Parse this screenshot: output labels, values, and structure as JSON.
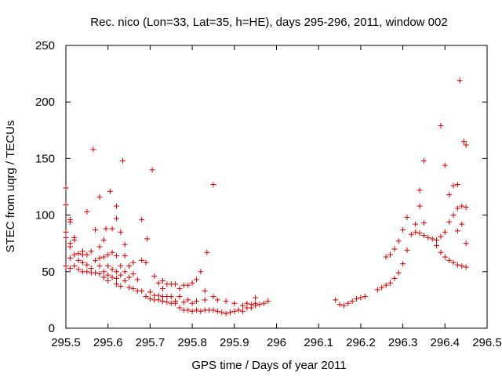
{
  "chart_data": {
    "type": "scatter",
    "title": "Rec. nico (Lon=33, Lat=35, h=HE), days 295-296, 2011, window 002",
    "xlabel": "GPS time / Days of year 2011",
    "ylabel": "STEC from uqrg / TECUs",
    "xlim": [
      295.5,
      296.5
    ],
    "ylim": [
      0,
      250
    ],
    "grid": false,
    "legend": "none",
    "marker": "+",
    "marker_color": "#cc0000",
    "xticks": [
      295.5,
      295.6,
      295.7,
      295.8,
      295.9,
      296,
      296.1,
      296.2,
      296.3,
      296.4,
      296.5
    ],
    "xtick_labels": [
      "295.5",
      "295.6",
      "295.7",
      "295.8",
      "295.9",
      "296",
      "296.1",
      "296.2",
      "296.3",
      "296.4",
      "296.5"
    ],
    "yticks": [
      0,
      50,
      100,
      150,
      200,
      250
    ],
    "ytick_labels": [
      "0",
      "50",
      "100",
      "150",
      "200",
      "250"
    ],
    "series": [
      {
        "name": "stec",
        "points": [
          [
            295.5,
            124
          ],
          [
            295.5,
            109
          ],
          [
            295.5,
            85
          ],
          [
            295.5,
            80
          ],
          [
            295.5,
            55
          ],
          [
            295.51,
            96
          ],
          [
            295.51,
            94
          ],
          [
            295.51,
            75
          ],
          [
            295.51,
            72
          ],
          [
            295.51,
            62
          ],
          [
            295.51,
            53
          ],
          [
            295.52,
            80
          ],
          [
            295.52,
            78
          ],
          [
            295.52,
            65
          ],
          [
            295.52,
            55
          ],
          [
            295.53,
            66
          ],
          [
            295.53,
            60
          ],
          [
            295.53,
            52
          ],
          [
            295.54,
            68
          ],
          [
            295.54,
            65
          ],
          [
            295.54,
            58
          ],
          [
            295.54,
            50
          ],
          [
            295.55,
            103
          ],
          [
            295.55,
            65
          ],
          [
            295.55,
            56
          ],
          [
            295.55,
            50
          ],
          [
            295.56,
            68
          ],
          [
            295.56,
            53
          ],
          [
            295.56,
            49
          ],
          [
            295.565,
            158
          ],
          [
            295.57,
            87
          ],
          [
            295.57,
            60
          ],
          [
            295.57,
            49
          ],
          [
            295.58,
            116
          ],
          [
            295.58,
            72
          ],
          [
            295.58,
            62
          ],
          [
            295.58,
            55
          ],
          [
            295.58,
            48
          ],
          [
            295.59,
            78
          ],
          [
            295.59,
            63
          ],
          [
            295.59,
            50
          ],
          [
            295.59,
            45
          ],
          [
            295.595,
            88
          ],
          [
            295.6,
            65
          ],
          [
            295.6,
            55
          ],
          [
            295.6,
            47
          ],
          [
            295.6,
            42
          ],
          [
            295.605,
            121
          ],
          [
            295.61,
            88
          ],
          [
            295.61,
            67
          ],
          [
            295.61,
            52
          ],
          [
            295.61,
            45
          ],
          [
            295.62,
            108
          ],
          [
            295.62,
            97
          ],
          [
            295.62,
            64
          ],
          [
            295.62,
            50
          ],
          [
            295.62,
            44
          ],
          [
            295.62,
            39
          ],
          [
            295.63,
            85
          ],
          [
            295.63,
            55
          ],
          [
            295.63,
            47
          ],
          [
            295.63,
            37
          ],
          [
            295.635,
            148
          ],
          [
            295.64,
            74
          ],
          [
            295.64,
            64
          ],
          [
            295.64,
            50
          ],
          [
            295.64,
            42
          ],
          [
            295.65,
            55
          ],
          [
            295.65,
            45
          ],
          [
            295.65,
            36
          ],
          [
            295.66,
            58
          ],
          [
            295.66,
            48
          ],
          [
            295.66,
            35
          ],
          [
            295.67,
            43
          ],
          [
            295.67,
            33
          ],
          [
            295.68,
            96
          ],
          [
            295.68,
            60
          ],
          [
            295.68,
            33
          ],
          [
            295.69,
            58
          ],
          [
            295.69,
            28
          ],
          [
            295.693,
            79
          ],
          [
            295.7,
            32
          ],
          [
            295.7,
            26
          ],
          [
            295.705,
            140
          ],
          [
            295.71,
            46
          ],
          [
            295.71,
            29
          ],
          [
            295.71,
            25
          ],
          [
            295.72,
            40
          ],
          [
            295.72,
            29
          ],
          [
            295.72,
            25
          ],
          [
            295.73,
            42
          ],
          [
            295.73,
            35
          ],
          [
            295.73,
            28
          ],
          [
            295.73,
            24
          ],
          [
            295.74,
            39
          ],
          [
            295.74,
            28
          ],
          [
            295.74,
            23
          ],
          [
            295.75,
            39
          ],
          [
            295.75,
            28
          ],
          [
            295.75,
            22
          ],
          [
            295.76,
            39
          ],
          [
            295.76,
            24
          ],
          [
            295.76,
            22
          ],
          [
            295.77,
            35
          ],
          [
            295.77,
            28
          ],
          [
            295.77,
            18
          ],
          [
            295.78,
            38
          ],
          [
            295.78,
            23
          ],
          [
            295.78,
            16
          ],
          [
            295.79,
            38
          ],
          [
            295.79,
            25
          ],
          [
            295.79,
            16
          ],
          [
            295.8,
            40
          ],
          [
            295.8,
            22
          ],
          [
            295.8,
            15
          ],
          [
            295.81,
            43
          ],
          [
            295.81,
            24
          ],
          [
            295.81,
            16
          ],
          [
            295.82,
            50
          ],
          [
            295.82,
            15
          ],
          [
            295.83,
            33
          ],
          [
            295.83,
            25
          ],
          [
            295.83,
            16
          ],
          [
            295.835,
            67
          ],
          [
            295.84,
            16
          ],
          [
            295.85,
            127
          ],
          [
            295.85,
            28
          ],
          [
            295.85,
            16
          ],
          [
            295.86,
            25
          ],
          [
            295.86,
            15
          ],
          [
            295.87,
            14
          ],
          [
            295.88,
            24
          ],
          [
            295.88,
            13
          ],
          [
            295.89,
            14
          ],
          [
            295.9,
            22
          ],
          [
            295.9,
            15
          ],
          [
            295.91,
            16
          ],
          [
            295.92,
            20
          ],
          [
            295.92,
            15
          ],
          [
            295.93,
            22
          ],
          [
            295.93,
            18
          ],
          [
            295.94,
            21
          ],
          [
            295.94,
            18
          ],
          [
            295.95,
            27
          ],
          [
            295.95,
            22
          ],
          [
            295.95,
            20
          ],
          [
            295.96,
            21
          ],
          [
            295.97,
            22
          ],
          [
            295.98,
            24
          ],
          [
            296.14,
            25
          ],
          [
            296.15,
            21
          ],
          [
            296.16,
            20
          ],
          [
            296.17,
            22
          ],
          [
            296.18,
            24
          ],
          [
            296.19,
            26
          ],
          [
            296.2,
            27
          ],
          [
            296.21,
            28
          ],
          [
            296.24,
            34
          ],
          [
            296.25,
            36
          ],
          [
            296.26,
            63
          ],
          [
            296.26,
            38
          ],
          [
            296.27,
            65
          ],
          [
            296.27,
            40
          ],
          [
            296.28,
            70
          ],
          [
            296.28,
            44
          ],
          [
            296.29,
            77
          ],
          [
            296.29,
            49
          ],
          [
            296.3,
            87
          ],
          [
            296.3,
            57
          ],
          [
            296.31,
            69
          ],
          [
            296.31,
            98
          ],
          [
            296.32,
            83
          ],
          [
            296.33,
            92
          ],
          [
            296.33,
            85
          ],
          [
            296.34,
            122
          ],
          [
            296.34,
            108
          ],
          [
            296.34,
            84
          ],
          [
            296.35,
            148
          ],
          [
            296.35,
            93
          ],
          [
            296.35,
            82
          ],
          [
            296.36,
            80
          ],
          [
            296.37,
            79
          ],
          [
            296.38,
            73
          ],
          [
            296.38,
            78
          ],
          [
            296.39,
            179
          ],
          [
            296.39,
            67
          ],
          [
            296.39,
            81
          ],
          [
            296.4,
            144
          ],
          [
            296.4,
            85
          ],
          [
            296.4,
            63
          ],
          [
            296.41,
            118
          ],
          [
            296.41,
            94
          ],
          [
            296.41,
            60
          ],
          [
            296.42,
            126
          ],
          [
            296.42,
            100
          ],
          [
            296.42,
            58
          ],
          [
            296.43,
            127
          ],
          [
            296.43,
            106
          ],
          [
            296.43,
            86
          ],
          [
            296.43,
            56
          ],
          [
            296.435,
            219
          ],
          [
            296.44,
            108
          ],
          [
            296.44,
            92
          ],
          [
            296.44,
            55
          ],
          [
            296.445,
            165
          ],
          [
            296.45,
            162
          ],
          [
            296.45,
            107
          ],
          [
            296.45,
            75
          ],
          [
            296.45,
            54
          ]
        ]
      }
    ]
  }
}
